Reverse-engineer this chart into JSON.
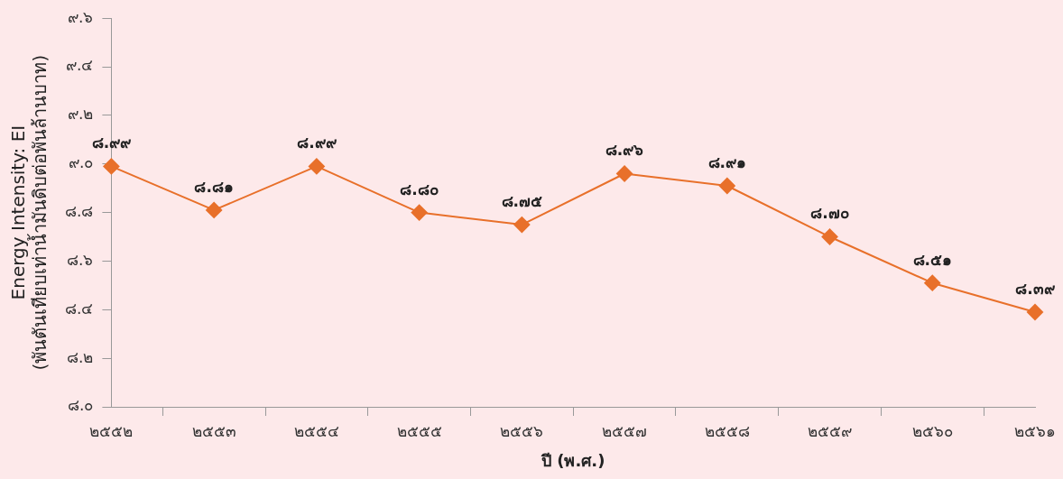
{
  "chart_data": {
    "type": "line",
    "xlabel": "ปี (พ.ศ.)",
    "ylabel": "Energy Intensity: EI\n(พันตันเทียบเท่าน้ำมันดิบต่อพันล้านบาท)",
    "categories": [
      "๒๕๕๒",
      "๒๕๕๓",
      "๒๕๕๔",
      "๒๕๕๕",
      "๒๕๕๖",
      "๒๕๕๗",
      "๒๕๕๘",
      "๒๕๕๙",
      "๒๕๖๐",
      "๒๕๖๑"
    ],
    "series": [
      {
        "color": "#e8702a",
        "values": [
          8.99,
          8.81,
          8.99,
          8.8,
          8.75,
          8.96,
          8.91,
          8.7,
          8.51,
          8.39
        ],
        "value_labels": [
          "๘.๙๙",
          "๘.๘๑",
          "๘.๙๙",
          "๘.๘๐",
          "๘.๗๕",
          "๘.๙๖",
          "๘.๙๑",
          "๘.๗๐",
          "๘.๕๑",
          "๘.๓๙"
        ]
      }
    ],
    "ylim": [
      8.0,
      9.6
    ],
    "yticks": [
      {
        "value": 8.0,
        "label": "๘.๐"
      },
      {
        "value": 8.2,
        "label": "๘.๒"
      },
      {
        "value": 8.4,
        "label": "๘.๔"
      },
      {
        "value": 8.6,
        "label": "๘.๖"
      },
      {
        "value": 8.8,
        "label": "๘.๘"
      },
      {
        "value": 9.0,
        "label": "๙.๐"
      },
      {
        "value": 9.2,
        "label": "๙.๒"
      },
      {
        "value": 9.4,
        "label": "๙.๔"
      },
      {
        "value": 9.6,
        "label": "๙.๖"
      }
    ],
    "marker": "diamond",
    "line_style": "solid",
    "grid": false,
    "legend": false
  }
}
